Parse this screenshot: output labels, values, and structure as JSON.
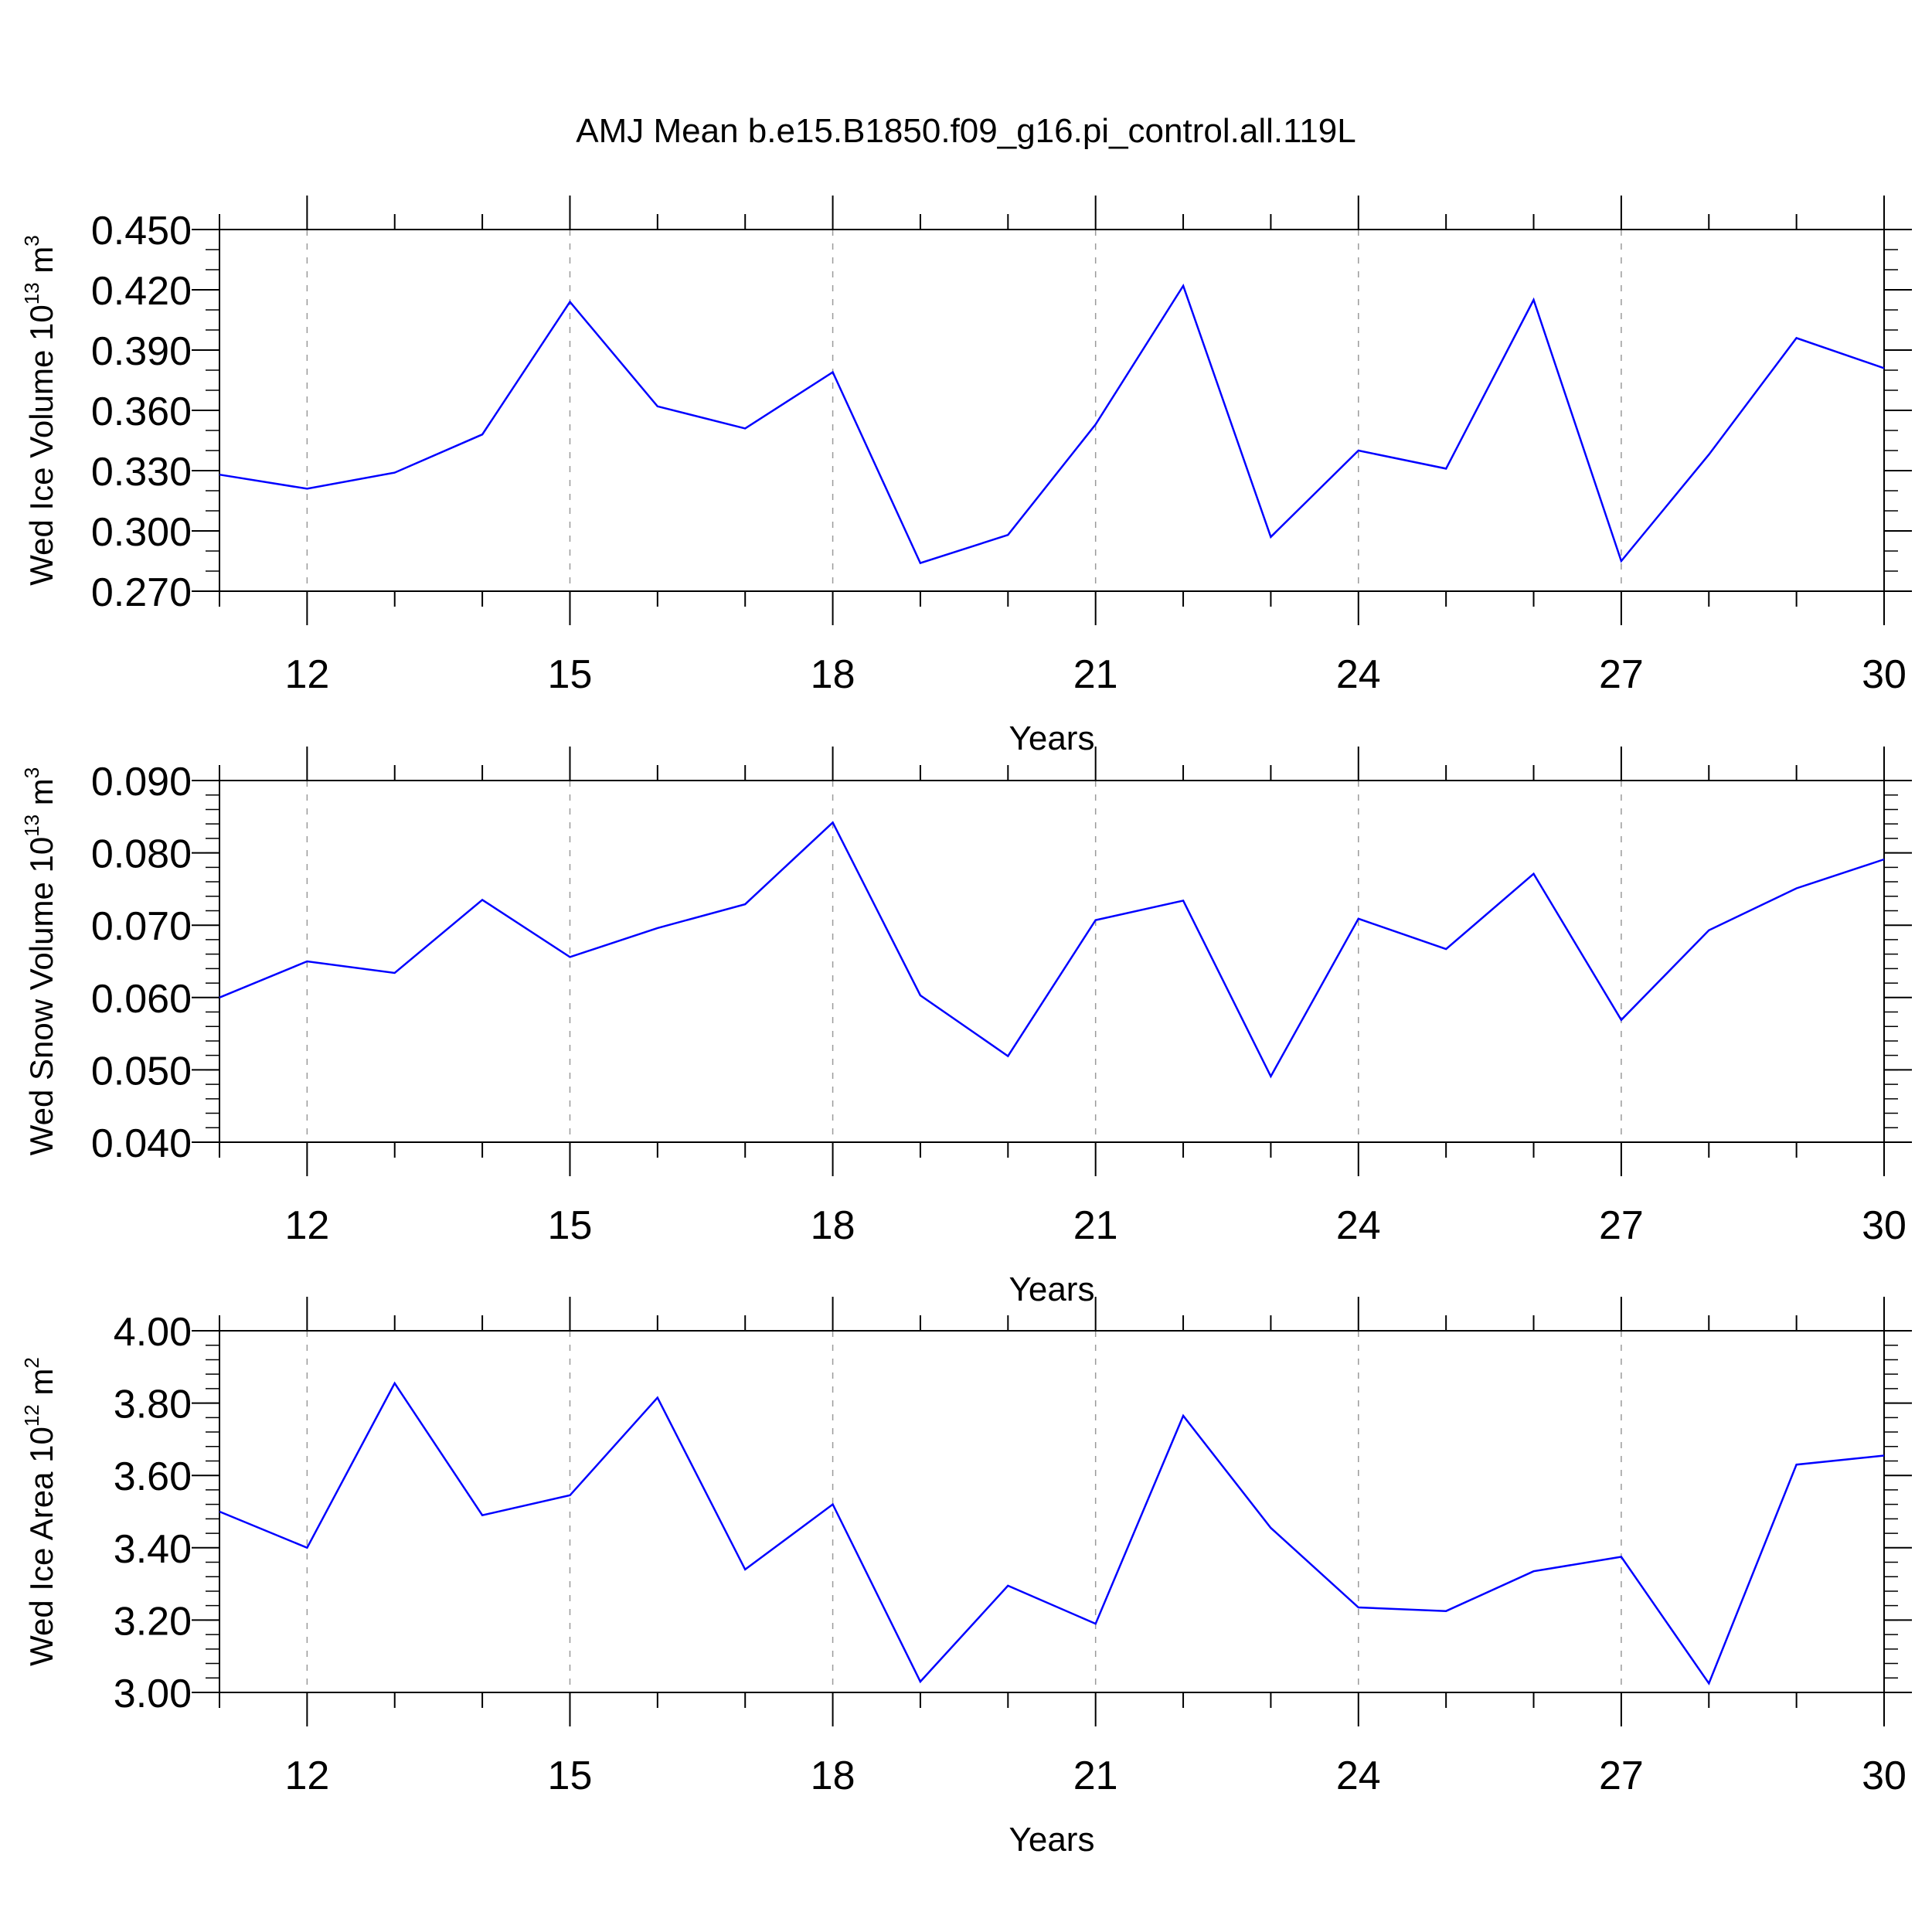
{
  "title": "AMJ Mean b.e15.B1850.f09_g16.pi_control.all.119L",
  "chart_data": [
    {
      "type": "line",
      "title": "",
      "xlabel": "Years",
      "ylabel_main": "Wed Ice Volume 10",
      "ylabel_sup": "13",
      "ylabel_unit": " m",
      "ylabel_unit_sup": "3",
      "xlim": [
        11,
        30
      ],
      "ylim": [
        0.27,
        0.45
      ],
      "xticks": [
        12,
        15,
        18,
        21,
        24,
        27,
        30
      ],
      "xtick_labels": [
        "12",
        "15",
        "18",
        "21",
        "24",
        "27",
        "30"
      ],
      "yticks": [
        0.27,
        0.3,
        0.33,
        0.36,
        0.39,
        0.42,
        0.45
      ],
      "ytick_labels": [
        "0.270",
        "0.300",
        "0.330",
        "0.360",
        "0.390",
        "0.420",
        "0.450"
      ],
      "y_minor_step": 0.01,
      "grid": "dashed vertical at major x ticks",
      "line_color": "#0000ff",
      "series": [
        {
          "x": [
            11,
            12,
            13,
            14,
            15,
            16,
            17,
            18,
            19,
            20,
            21,
            22,
            23,
            24,
            25,
            26,
            27,
            28,
            29,
            30
          ],
          "values": [
            0.328,
            0.321,
            0.329,
            0.348,
            0.414,
            0.362,
            0.351,
            0.379,
            0.284,
            0.298,
            0.353,
            0.422,
            0.297,
            0.34,
            0.331,
            0.415,
            0.285,
            0.338,
            0.396,
            0.381
          ]
        }
      ]
    },
    {
      "type": "line",
      "title": "",
      "xlabel": "Years",
      "ylabel_main": "Wed Snow Volume 10",
      "ylabel_sup": "13",
      "ylabel_unit": " m",
      "ylabel_unit_sup": "3",
      "xlim": [
        11,
        30
      ],
      "ylim": [
        0.04,
        0.09
      ],
      "xticks": [
        12,
        15,
        18,
        21,
        24,
        27,
        30
      ],
      "xtick_labels": [
        "12",
        "15",
        "18",
        "21",
        "24",
        "27",
        "30"
      ],
      "yticks": [
        0.04,
        0.05,
        0.06,
        0.07,
        0.08,
        0.09
      ],
      "ytick_labels": [
        "0.040",
        "0.050",
        "0.060",
        "0.070",
        "0.080",
        "0.090"
      ],
      "y_minor_step": 0.002,
      "grid": "dashed vertical at major x ticks",
      "line_color": "#0000ff",
      "series": [
        {
          "x": [
            11,
            12,
            13,
            14,
            15,
            16,
            17,
            18,
            19,
            20,
            21,
            22,
            23,
            24,
            25,
            26,
            27,
            28,
            29,
            30
          ],
          "values": [
            0.06,
            0.065,
            0.0634,
            0.0735,
            0.0656,
            0.0696,
            0.0729,
            0.0842,
            0.0603,
            0.0519,
            0.0707,
            0.0734,
            0.0491,
            0.0709,
            0.0667,
            0.0771,
            0.0569,
            0.0693,
            0.0751,
            0.0791
          ]
        }
      ]
    },
    {
      "type": "line",
      "title": "",
      "xlabel": "Years",
      "ylabel_main": "Wed Ice Area 10",
      "ylabel_sup": "12",
      "ylabel_unit": " m",
      "ylabel_unit_sup": "2",
      "xlim": [
        11,
        30
      ],
      "ylim": [
        3.0,
        4.0
      ],
      "xticks": [
        12,
        15,
        18,
        21,
        24,
        27,
        30
      ],
      "xtick_labels": [
        "12",
        "15",
        "18",
        "21",
        "24",
        "27",
        "30"
      ],
      "yticks": [
        3.0,
        3.2,
        3.4,
        3.6,
        3.8,
        4.0
      ],
      "ytick_labels": [
        "3.00",
        "3.20",
        "3.40",
        "3.60",
        "3.80",
        "4.00"
      ],
      "y_minor_step": 0.04,
      "grid": "dashed vertical at major x ticks",
      "line_color": "#0000ff",
      "series": [
        {
          "x": [
            11,
            12,
            13,
            14,
            15,
            16,
            17,
            18,
            19,
            20,
            21,
            22,
            23,
            24,
            25,
            26,
            27,
            28,
            29,
            30
          ],
          "values": [
            3.5,
            3.4,
            3.855,
            3.49,
            3.545,
            3.815,
            3.34,
            3.52,
            3.03,
            3.295,
            3.19,
            3.765,
            3.455,
            3.235,
            3.225,
            3.335,
            3.375,
            3.025,
            3.63,
            3.655
          ]
        }
      ]
    }
  ]
}
